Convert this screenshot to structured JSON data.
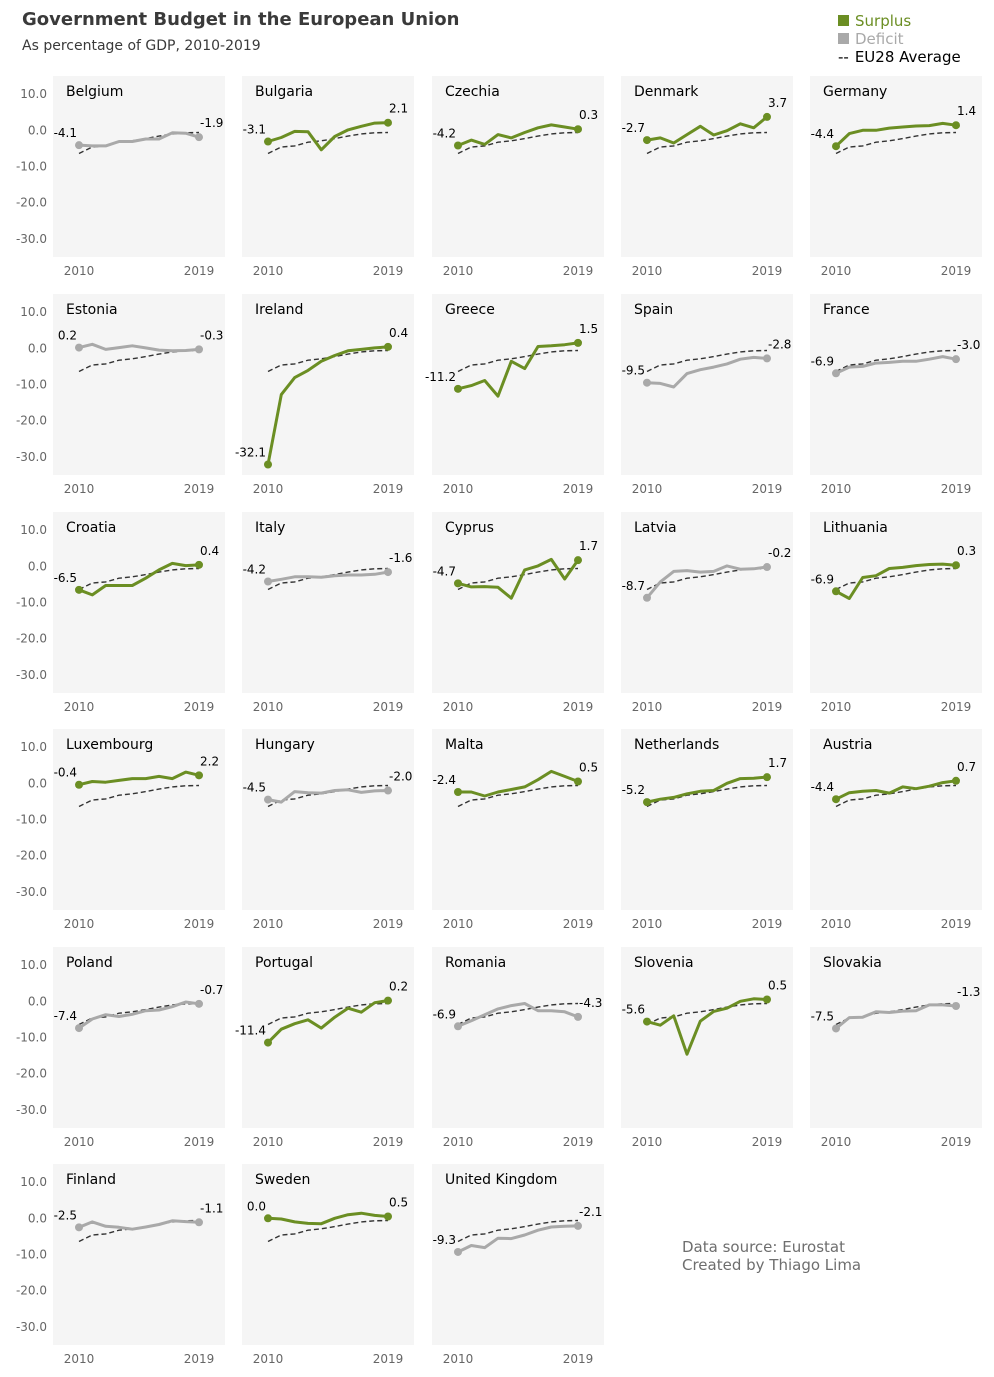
{
  "title": "Government Budget in the European Union",
  "subtitle": "As percentage of GDP, 2010-2019",
  "legend": {
    "surplus_label": "Surplus",
    "deficit_label": "Deficit",
    "average_label": "EU28 Average",
    "average_marker": "--"
  },
  "source": {
    "line1": "Data source: Eurostat",
    "line2": "Created by Thiago Lima"
  },
  "colors": {
    "surplus": "#6b8e23",
    "deficit": "#a9a9a9",
    "average": "#333333",
    "panel_bg": "#f5f5f5",
    "tick_text": "#666666"
  },
  "chart_data": {
    "type": "line",
    "x": [
      2010,
      2011,
      2012,
      2013,
      2014,
      2015,
      2016,
      2017,
      2018,
      2019
    ],
    "x_tick_labels": [
      "2010",
      "2019"
    ],
    "ylim": [
      -35,
      15
    ],
    "y_ticks": [
      10,
      0,
      -10,
      -20,
      -30
    ],
    "y_tick_labels": [
      "10.0",
      "0.0",
      "-10.0",
      "-20.0",
      "-30.0"
    ],
    "grid": false,
    "average_series": {
      "name": "EU28 Average",
      "values": [
        -6.4,
        -4.6,
        -4.3,
        -3.3,
        -2.9,
        -2.3,
        -1.6,
        -1.0,
        -0.7,
        -0.6
      ]
    },
    "panels": [
      {
        "country": "Belgium",
        "status": "deficit",
        "start_label": "-4.1",
        "end_label": "-1.9",
        "values": [
          -4.1,
          -4.3,
          -4.3,
          -3.1,
          -3.1,
          -2.4,
          -2.4,
          -0.7,
          -0.8,
          -1.9
        ]
      },
      {
        "country": "Bulgaria",
        "status": "surplus",
        "start_label": "-3.1",
        "end_label": "2.1",
        "values": [
          -3.1,
          -2.0,
          -0.3,
          -0.4,
          -5.4,
          -1.7,
          0.1,
          1.1,
          2.0,
          2.1
        ]
      },
      {
        "country": "Czechia",
        "status": "surplus",
        "start_label": "-4.2",
        "end_label": "0.3",
        "values": [
          -4.2,
          -2.7,
          -3.9,
          -1.2,
          -2.1,
          -0.6,
          0.7,
          1.5,
          0.9,
          0.3
        ]
      },
      {
        "country": "Denmark",
        "status": "surplus",
        "start_label": "-2.7",
        "end_label": "3.7",
        "values": [
          -2.7,
          -2.1,
          -3.5,
          -1.2,
          1.1,
          -1.3,
          -0.1,
          1.8,
          0.7,
          3.7
        ]
      },
      {
        "country": "Germany",
        "status": "surplus",
        "start_label": "-4.4",
        "end_label": "1.4",
        "values": [
          -4.4,
          -0.9,
          0.0,
          0.0,
          0.6,
          0.9,
          1.2,
          1.3,
          1.9,
          1.4
        ]
      },
      {
        "country": "Estonia",
        "status": "deficit",
        "start_label": "0.2",
        "end_label": "-0.3",
        "values": [
          0.2,
          1.1,
          -0.3,
          0.2,
          0.7,
          0.1,
          -0.5,
          -0.7,
          -0.6,
          -0.3
        ]
      },
      {
        "country": "Ireland",
        "status": "surplus",
        "start_label": "-32.1",
        "end_label": "0.4",
        "values": [
          -32.1,
          -12.8,
          -8.1,
          -6.1,
          -3.6,
          -2.0,
          -0.7,
          -0.3,
          0.1,
          0.4
        ]
      },
      {
        "country": "Greece",
        "status": "surplus",
        "start_label": "-11.2",
        "end_label": "1.5",
        "values": [
          -11.2,
          -10.3,
          -8.9,
          -13.2,
          -3.6,
          -5.6,
          0.5,
          0.7,
          1.0,
          1.5
        ]
      },
      {
        "country": "Spain",
        "status": "deficit",
        "start_label": "-9.5",
        "end_label": "-2.8",
        "values": [
          -9.5,
          -9.7,
          -10.7,
          -7.0,
          -5.9,
          -5.2,
          -4.3,
          -3.0,
          -2.5,
          -2.8
        ]
      },
      {
        "country": "France",
        "status": "deficit",
        "start_label": "-6.9",
        "end_label": "-3.0",
        "values": [
          -6.9,
          -5.2,
          -5.0,
          -4.1,
          -3.9,
          -3.6,
          -3.6,
          -3.0,
          -2.3,
          -3.0
        ]
      },
      {
        "country": "Croatia",
        "status": "surplus",
        "start_label": "-6.5",
        "end_label": "0.4",
        "values": [
          -6.5,
          -7.9,
          -5.3,
          -5.3,
          -5.3,
          -3.3,
          -1.0,
          0.8,
          0.2,
          0.4
        ]
      },
      {
        "country": "Italy",
        "status": "deficit",
        "start_label": "-4.2",
        "end_label": "-1.6",
        "values": [
          -4.2,
          -3.6,
          -2.9,
          -2.9,
          -3.0,
          -2.6,
          -2.4,
          -2.4,
          -2.2,
          -1.6
        ]
      },
      {
        "country": "Cyprus",
        "status": "surplus",
        "start_label": "-4.7",
        "end_label": "1.7",
        "values": [
          -4.7,
          -5.7,
          -5.6,
          -5.8,
          -8.8,
          -1.0,
          0.1,
          1.9,
          -3.5,
          1.7
        ]
      },
      {
        "country": "Latvia",
        "status": "deficit",
        "start_label": "-8.7",
        "end_label": "-0.2",
        "values": [
          -8.7,
          -4.3,
          -1.4,
          -1.2,
          -1.6,
          -1.4,
          0.1,
          -0.8,
          -0.7,
          -0.2
        ]
      },
      {
        "country": "Lithuania",
        "status": "surplus",
        "start_label": "-6.9",
        "end_label": "0.3",
        "values": [
          -6.9,
          -8.9,
          -3.1,
          -2.6,
          -0.6,
          -0.3,
          0.2,
          0.5,
          0.6,
          0.3
        ]
      },
      {
        "country": "Luxembourg",
        "status": "surplus",
        "start_label": "-0.4",
        "end_label": "2.2",
        "values": [
          -0.4,
          0.5,
          0.3,
          0.8,
          1.3,
          1.3,
          1.9,
          1.3,
          3.1,
          2.2
        ]
      },
      {
        "country": "Hungary",
        "status": "deficit",
        "start_label": "-4.5",
        "end_label": "-2.0",
        "values": [
          -4.5,
          -5.2,
          -2.3,
          -2.6,
          -2.7,
          -2.0,
          -1.8,
          -2.5,
          -2.1,
          -2.0
        ]
      },
      {
        "country": "Malta",
        "status": "surplus",
        "start_label": "-2.4",
        "end_label": "0.5",
        "values": [
          -2.4,
          -2.4,
          -3.5,
          -2.4,
          -1.7,
          -1.0,
          1.0,
          3.3,
          1.9,
          0.5
        ]
      },
      {
        "country": "Netherlands",
        "status": "surplus",
        "start_label": "-5.2",
        "end_label": "1.7",
        "values": [
          -5.2,
          -4.4,
          -3.9,
          -2.9,
          -2.2,
          -2.0,
          0.0,
          1.3,
          1.4,
          1.7
        ]
      },
      {
        "country": "Austria",
        "status": "surplus",
        "start_label": "-4.4",
        "end_label": "0.7",
        "values": [
          -4.4,
          -2.6,
          -2.2,
          -2.0,
          -2.7,
          -1.0,
          -1.5,
          -0.8,
          0.2,
          0.7
        ]
      },
      {
        "country": "Poland",
        "status": "deficit",
        "start_label": "-7.4",
        "end_label": "-0.7",
        "values": [
          -7.4,
          -4.9,
          -3.7,
          -4.2,
          -3.6,
          -2.6,
          -2.4,
          -1.5,
          -0.2,
          -0.7
        ]
      },
      {
        "country": "Portugal",
        "status": "surplus",
        "start_label": "-11.4",
        "end_label": "0.2",
        "values": [
          -11.4,
          -7.7,
          -6.2,
          -5.1,
          -7.4,
          -4.4,
          -1.9,
          -3.0,
          -0.4,
          0.2
        ]
      },
      {
        "country": "Romania",
        "status": "deficit",
        "start_label": "-6.9",
        "end_label": "-4.3",
        "values": [
          -6.9,
          -5.4,
          -3.7,
          -2.1,
          -1.2,
          -0.6,
          -2.6,
          -2.6,
          -2.9,
          -4.3
        ]
      },
      {
        "country": "Slovenia",
        "status": "surplus",
        "start_label": "-5.6",
        "end_label": "0.5",
        "values": [
          -5.6,
          -6.6,
          -4.0,
          -14.6,
          -5.5,
          -2.8,
          -1.9,
          0.0,
          0.7,
          0.5
        ]
      },
      {
        "country": "Slovakia",
        "status": "deficit",
        "start_label": "-7.5",
        "end_label": "-1.3",
        "values": [
          -7.5,
          -4.5,
          -4.4,
          -2.9,
          -3.1,
          -2.7,
          -2.6,
          -1.0,
          -1.0,
          -1.3
        ]
      },
      {
        "country": "Finland",
        "status": "deficit",
        "start_label": "-2.5",
        "end_label": "-1.1",
        "values": [
          -2.5,
          -1.0,
          -2.2,
          -2.5,
          -3.0,
          -2.4,
          -1.7,
          -0.7,
          -0.9,
          -1.1
        ]
      },
      {
        "country": "Sweden",
        "status": "surplus",
        "start_label": "0.0",
        "end_label": "0.5",
        "values": [
          0.0,
          -0.2,
          -1.0,
          -1.4,
          -1.5,
          0.0,
          1.0,
          1.4,
          0.8,
          0.5
        ]
      },
      {
        "country": "United Kingdom",
        "status": "deficit",
        "start_label": "-9.3",
        "end_label": "-2.1",
        "values": [
          -9.3,
          -7.5,
          -8.1,
          -5.5,
          -5.6,
          -4.6,
          -3.3,
          -2.4,
          -2.2,
          -2.1
        ]
      }
    ]
  }
}
